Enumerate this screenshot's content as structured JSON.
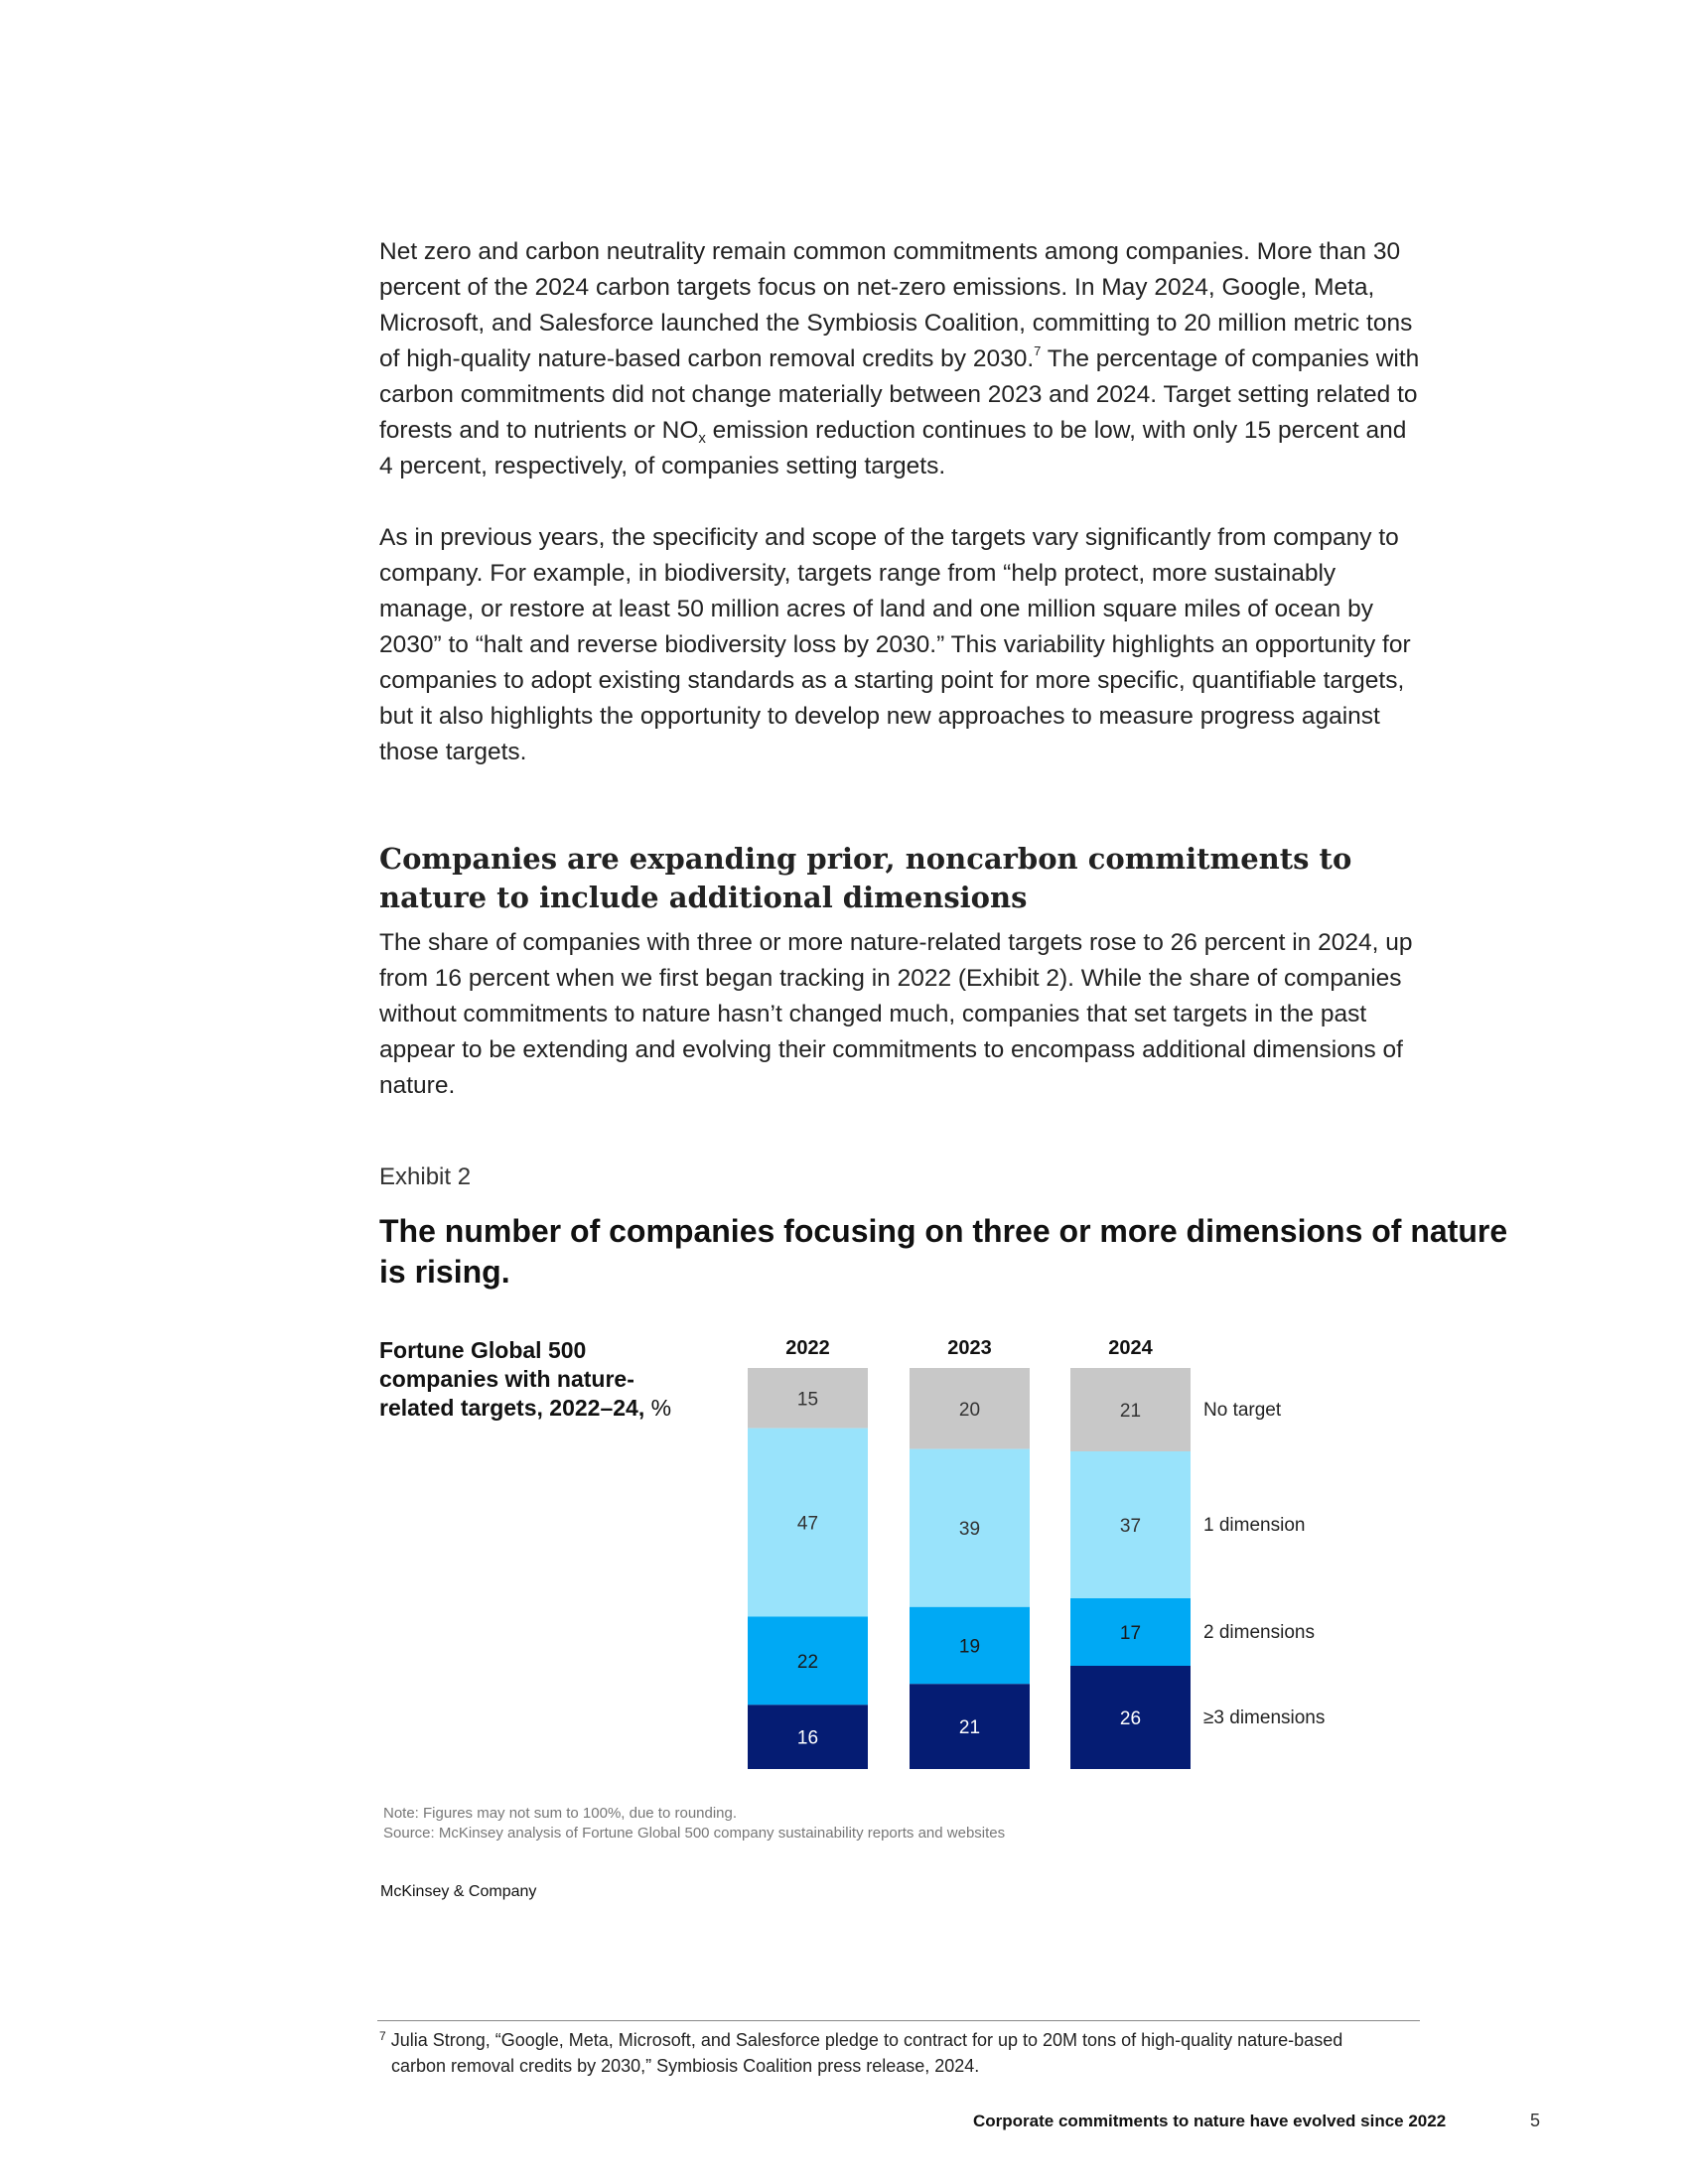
{
  "body": {
    "p1_parts": [
      "Net zero and carbon neutrality remain common commitments among companies. More than 30 percent of the 2024 carbon targets focus on net-zero emissions. In May 2024, Google, Meta, Microsoft, and Salesforce launched the Symbiosis Coalition, committing to 20 million metric tons of high-quality nature-based carbon removal credits by 2030.",
      "7",
      " The percentage of companies with carbon commitments did not change materially between 2023 and 2024. Target setting related to forests and to nutrients or NO",
      "x",
      " emission reduction continues to be low, with only 15 percent and 4 percent, respectively, of companies setting targets."
    ],
    "p2": "As in previous years, the specificity and scope of the targets vary significantly from company to company. For example, in biodiversity, targets range from “help protect, more sustainably manage, or restore at least 50 million acres of land and one million square miles of ocean by 2030” to “halt and reverse biodiversity loss by 2030.” This variability highlights an opportunity for companies to adopt existing standards as a starting point for more specific, quantifiable targets, but it also highlights the opportunity to develop new approaches to measure progress against those targets.",
    "section_heading": "Companies are expanding prior, noncarbon commitments to nature to include additional dimensions",
    "p3": "The share of companies with three or more nature-related targets rose to 26 percent in 2024, up from 16 percent when we first began tracking in 2022 (Exhibit 2). While the share of companies without commitments to nature hasn’t changed much, companies that set targets in the past appear to be extending and evolving their commitments to encompass additional dimensions of nature."
  },
  "exhibit": {
    "label": "Exhibit 2",
    "title": "The number of companies focusing on three or more dimensions of nature is rising.",
    "subtitle_bold": "Fortune Global 500 companies with nature-related targets, 2022–24,",
    "subtitle_unit": " %",
    "note": "Note: Figures may not sum to 100%, due to rounding.",
    "source": "Source: McKinsey analysis of Fortune Global 500 company sustainability reports and websites"
  },
  "chart_data": {
    "type": "bar",
    "stacked": true,
    "unit": "%",
    "categories": [
      "2022",
      "2023",
      "2024"
    ],
    "series": [
      {
        "name": "No target",
        "values": [
          15,
          20,
          21
        ],
        "color": "#c8c8c8",
        "label_color": "#333333"
      },
      {
        "name": "1 dimension",
        "values": [
          47,
          39,
          37
        ],
        "color": "#99e3fb",
        "label_color": "#333333"
      },
      {
        "name": "2 dimensions",
        "values": [
          22,
          19,
          17
        ],
        "color": "#00a9f4",
        "label_color": "#1a1a1a"
      },
      {
        "name": "≥3 dimensions",
        "values": [
          16,
          21,
          26
        ],
        "color": "#051c73",
        "label_color": "#ffffff"
      }
    ]
  },
  "brand": "McKinsey & Company",
  "footnote": {
    "mark": "7",
    "line1": " Julia Strong, “Google, Meta, Microsoft, and Salesforce pledge to contract for up to 20M tons of high-quality nature-based",
    "line2": "carbon removal credits by 2030,” Symbiosis Coalition press release, 2024."
  },
  "footer": {
    "title": "Corporate commitments to nature have evolved since 2022",
    "page_number": "5"
  }
}
